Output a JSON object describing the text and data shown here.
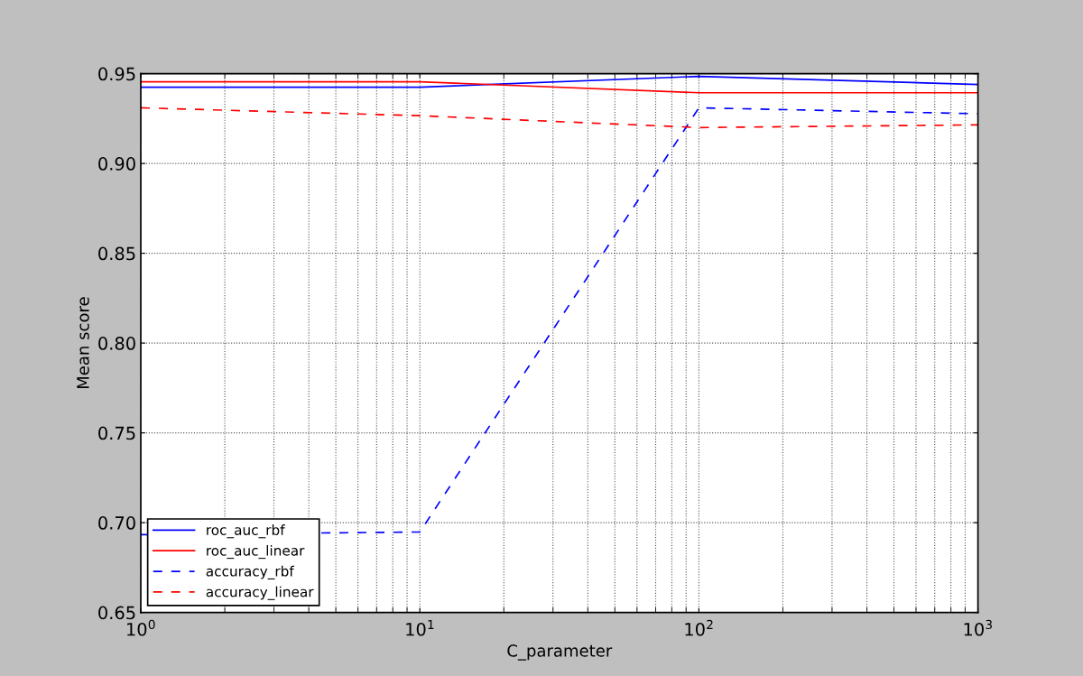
{
  "chart_data": {
    "type": "line",
    "xlabel": "C_parameter",
    "ylabel": "Mean score",
    "x": [
      1,
      10,
      100,
      1000
    ],
    "log": "x",
    "xlim": [
      1,
      1000
    ],
    "xticks": [
      {
        "value": 1,
        "label": "10$^{0}$"
      },
      {
        "value": 10,
        "label": "10$^{1}$"
      },
      {
        "value": 100,
        "label": "10$^{2}$"
      },
      {
        "value": 1000,
        "label": "10$^{3}$"
      }
    ],
    "ylim": [
      0.65,
      0.95
    ],
    "yticks": [
      {
        "value": 0.65,
        "label": "0.65"
      },
      {
        "value": 0.7,
        "label": "0.70"
      },
      {
        "value": 0.75,
        "label": "0.75"
      },
      {
        "value": 0.8,
        "label": "0.80"
      },
      {
        "value": 0.85,
        "label": "0.85"
      },
      {
        "value": 0.9,
        "label": "0.90"
      },
      {
        "value": 0.95,
        "label": "0.95"
      }
    ],
    "grid": true,
    "legend": "bottom left",
    "series": [
      {
        "name": "roc_auc_rbf",
        "color": "#0000ff",
        "line_style": "solid",
        "values": [
          0.9425,
          0.9425,
          0.9485,
          0.944
        ]
      },
      {
        "name": "roc_auc_linear",
        "color": "#ff0000",
        "line_style": "solid",
        "values": [
          0.9455,
          0.9455,
          0.9394,
          0.9394
        ]
      },
      {
        "name": "accuracy_rbf",
        "color": "#0000ff",
        "line_style": "dashed",
        "values": [
          0.6933,
          0.6948,
          0.931,
          0.9277
        ]
      },
      {
        "name": "accuracy_linear",
        "color": "#ff0000",
        "line_style": "dashed",
        "values": [
          0.931,
          0.9266,
          0.92,
          0.9215
        ]
      }
    ]
  }
}
